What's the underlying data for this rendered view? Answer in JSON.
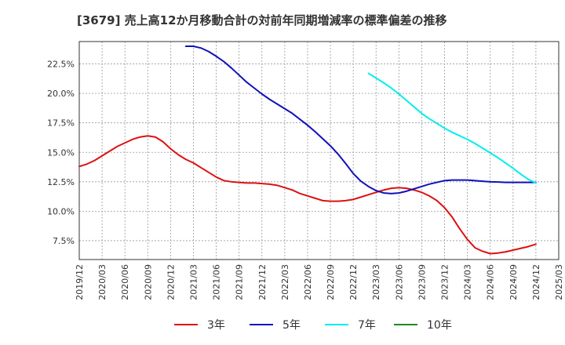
{
  "chart_data": {
    "type": "line",
    "title": "[3679]  売上高12か月移動合計の対前年同期増減率の標準偏差の推移",
    "xlabel": "",
    "ylabel": "",
    "x_ticks": [
      "2019/12",
      "2020/03",
      "2020/06",
      "2020/09",
      "2020/12",
      "2021/03",
      "2021/06",
      "2021/09",
      "2021/12",
      "2022/03",
      "2022/06",
      "2022/09",
      "2022/12",
      "2023/03",
      "2023/06",
      "2023/09",
      "2023/12",
      "2024/03",
      "2024/06",
      "2024/09",
      "2024/12",
      "2025/03"
    ],
    "y_ticks": [
      "7.5%",
      "10.0%",
      "12.5%",
      "15.0%",
      "17.5%",
      "20.0%",
      "22.5%"
    ],
    "ylim": [
      5.9,
      24.4
    ],
    "grid": true,
    "legend_position": "bottom",
    "series": [
      {
        "name": "3年",
        "color": "#dd1111",
        "x": [
          "2019/12",
          "2020/01",
          "2020/02",
          "2020/03",
          "2020/04",
          "2020/05",
          "2020/06",
          "2020/07",
          "2020/08",
          "2020/09",
          "2020/10",
          "2020/11",
          "2020/12",
          "2021/01",
          "2021/02",
          "2021/03",
          "2021/04",
          "2021/05",
          "2021/06",
          "2021/07",
          "2021/08",
          "2021/09",
          "2021/10",
          "2021/11",
          "2021/12",
          "2022/01",
          "2022/02",
          "2022/03",
          "2022/04",
          "2022/05",
          "2022/06",
          "2022/07",
          "2022/08",
          "2022/09",
          "2022/10",
          "2022/11",
          "2022/12",
          "2023/01",
          "2023/02",
          "2023/03",
          "2023/04",
          "2023/05",
          "2023/06",
          "2023/07",
          "2023/08",
          "2023/09",
          "2023/10",
          "2023/11",
          "2023/12",
          "2024/01",
          "2024/02",
          "2024/03",
          "2024/04",
          "2024/05",
          "2024/06",
          "2024/07",
          "2024/08",
          "2024/09",
          "2024/10",
          "2024/11",
          "2024/12"
        ],
        "values": [
          13.8,
          14.0,
          14.3,
          14.7,
          15.1,
          15.5,
          15.8,
          16.1,
          16.3,
          16.4,
          16.3,
          15.9,
          15.3,
          14.8,
          14.4,
          14.1,
          13.7,
          13.3,
          12.9,
          12.6,
          12.5,
          12.45,
          12.4,
          12.4,
          12.35,
          12.3,
          12.2,
          12.0,
          11.8,
          11.5,
          11.3,
          11.1,
          10.9,
          10.85,
          10.85,
          10.9,
          11.0,
          11.2,
          11.4,
          11.6,
          11.8,
          11.95,
          12.0,
          11.95,
          11.8,
          11.6,
          11.3,
          10.9,
          10.3,
          9.5,
          8.5,
          7.6,
          6.9,
          6.6,
          6.4,
          6.45,
          6.55,
          6.7,
          6.85,
          7.0,
          7.2
        ]
      },
      {
        "name": "5年",
        "color": "#1111bb",
        "x": [
          "2021/02",
          "2021/03",
          "2021/04",
          "2021/05",
          "2021/06",
          "2021/07",
          "2021/08",
          "2021/09",
          "2021/10",
          "2021/11",
          "2021/12",
          "2022/01",
          "2022/02",
          "2022/03",
          "2022/04",
          "2022/05",
          "2022/06",
          "2022/07",
          "2022/08",
          "2022/09",
          "2022/10",
          "2022/11",
          "2022/12",
          "2023/01",
          "2023/02",
          "2023/03",
          "2023/04",
          "2023/05",
          "2023/06",
          "2023/07",
          "2023/08",
          "2023/09",
          "2023/10",
          "2023/11",
          "2023/12",
          "2024/01",
          "2024/02",
          "2024/03",
          "2024/04",
          "2024/05",
          "2024/06",
          "2024/07",
          "2024/08",
          "2024/09",
          "2024/10",
          "2024/11",
          "2024/12"
        ],
        "values": [
          24.0,
          24.0,
          23.85,
          23.55,
          23.15,
          22.7,
          22.15,
          21.55,
          20.95,
          20.45,
          19.95,
          19.5,
          19.1,
          18.7,
          18.3,
          17.8,
          17.3,
          16.75,
          16.15,
          15.55,
          14.85,
          14.05,
          13.2,
          12.55,
          12.1,
          11.75,
          11.55,
          11.5,
          11.55,
          11.7,
          11.9,
          12.1,
          12.3,
          12.45,
          12.6,
          12.65,
          12.65,
          12.65,
          12.6,
          12.55,
          12.5,
          12.48,
          12.45,
          12.45,
          12.45,
          12.45,
          12.45
        ]
      },
      {
        "name": "7年",
        "color": "#00eeee",
        "x": [
          "2023/02",
          "2023/03",
          "2023/04",
          "2023/05",
          "2023/06",
          "2023/07",
          "2023/08",
          "2023/09",
          "2023/10",
          "2023/11",
          "2023/12",
          "2024/01",
          "2024/02",
          "2024/03",
          "2024/04",
          "2024/05",
          "2024/06",
          "2024/07",
          "2024/08",
          "2024/09",
          "2024/10",
          "2024/11",
          "2024/12"
        ],
        "values": [
          21.7,
          21.3,
          20.9,
          20.45,
          19.95,
          19.4,
          18.85,
          18.3,
          17.85,
          17.45,
          17.05,
          16.7,
          16.4,
          16.1,
          15.75,
          15.35,
          14.95,
          14.55,
          14.1,
          13.65,
          13.15,
          12.7,
          12.4
        ]
      },
      {
        "name": "10年",
        "color": "#228822",
        "x": [],
        "values": []
      }
    ]
  }
}
